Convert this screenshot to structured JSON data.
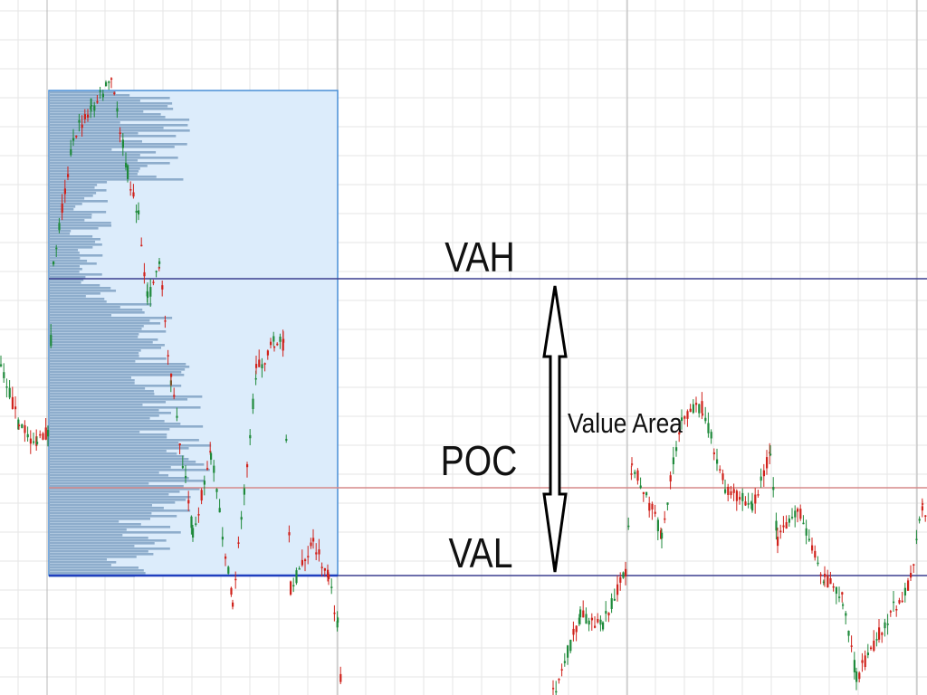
{
  "labels": {
    "vah": "VAH",
    "poc": "POC",
    "val": "VAL",
    "value_area": "Value Area"
  }
}
